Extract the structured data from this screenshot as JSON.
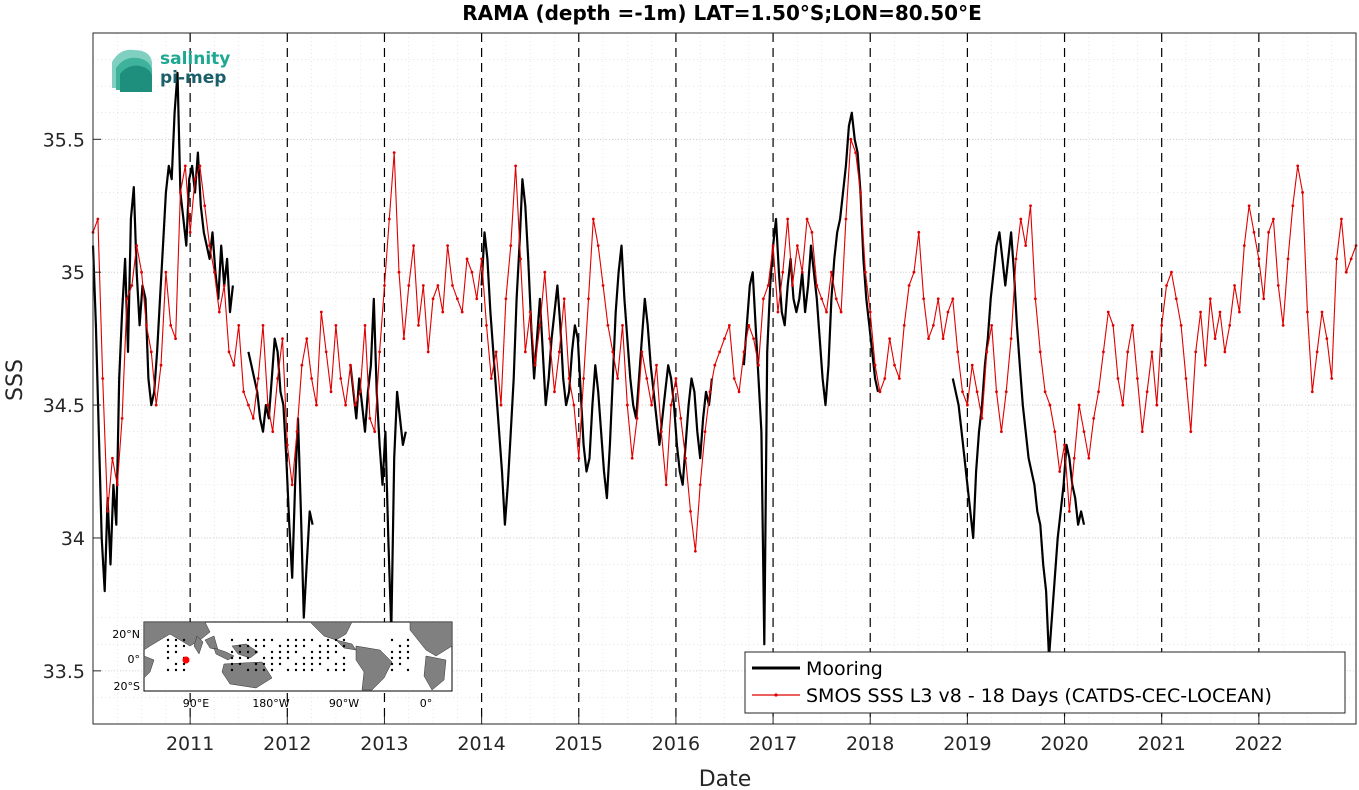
{
  "chart_data": {
    "type": "line",
    "title": "RAMA (depth =-1m) LAT=1.50°S;LON=80.50°E",
    "xlabel": "Date",
    "ylabel": "SSS",
    "xlim": [
      "2010-01-01",
      "2022-12-31"
    ],
    "ylim": [
      33.3,
      35.9
    ],
    "x_ticks": [
      "2011",
      "2012",
      "2013",
      "2014",
      "2015",
      "2016",
      "2017",
      "2018",
      "2019",
      "2020",
      "2021",
      "2022"
    ],
    "y_ticks": [
      "33.5",
      "34",
      "34.5",
      "35",
      "35.5"
    ],
    "grid": true,
    "legend_location": "bottom-right",
    "vertical_dashed_lines_at": [
      "2011",
      "2012",
      "2013",
      "2014",
      "2015",
      "2016",
      "2017",
      "2018",
      "2019",
      "2020",
      "2021",
      "2022"
    ],
    "series": [
      {
        "name": "Mooring",
        "color": "#000000",
        "x": [
          2010.0,
          2010.03,
          2010.06,
          2010.09,
          2010.12,
          2010.15,
          2010.18,
          2010.21,
          2010.24,
          2010.27,
          2010.3,
          2010.33,
          2010.36,
          2010.39,
          2010.42,
          2010.45,
          2010.48,
          2010.51,
          2010.54,
          2010.57,
          2010.6,
          2010.63,
          2010.66,
          2010.69,
          2010.72,
          2010.75,
          2010.78,
          2010.81,
          2010.84,
          2010.87,
          2010.9,
          2010.93,
          2010.96,
          2010.99,
          2011.02,
          2011.05,
          2011.08,
          2011.11,
          2011.14,
          2011.17,
          2011.2,
          2011.23,
          2011.26,
          2011.29,
          2011.32,
          2011.35,
          2011.38,
          2011.41,
          2011.44,
          null,
          2011.6,
          2011.63,
          2011.66,
          2011.69,
          2011.72,
          2011.75,
          2011.78,
          2011.81,
          2011.84,
          2011.87,
          2011.9,
          2011.93,
          2011.96,
          2011.99,
          2012.02,
          2012.05,
          2012.08,
          2012.11,
          2012.14,
          2012.17,
          2012.2,
          2012.23,
          2012.26,
          null,
          2012.65,
          2012.68,
          2012.71,
          2012.74,
          2012.77,
          2012.8,
          2012.83,
          2012.86,
          2012.89,
          2012.92,
          2012.95,
          2012.98,
          2013.01,
          2013.04,
          2013.07,
          2013.1,
          2013.13,
          2013.16,
          2013.19,
          2013.22,
          null,
          2014.0,
          2014.03,
          2014.06,
          2014.09,
          2014.12,
          2014.15,
          2014.18,
          2014.21,
          2014.24,
          2014.27,
          2014.3,
          2014.33,
          2014.36,
          2014.39,
          2014.42,
          2014.45,
          2014.48,
          2014.51,
          2014.54,
          2014.57,
          2014.6,
          2014.63,
          2014.66,
          2014.69,
          2014.72,
          2014.75,
          2014.78,
          2014.81,
          2014.84,
          2014.87,
          2014.9,
          2014.93,
          2014.96,
          2014.99,
          2015.02,
          2015.05,
          2015.08,
          2015.11,
          2015.14,
          2015.17,
          2015.2,
          2015.23,
          2015.26,
          2015.29,
          2015.32,
          2015.35,
          2015.38,
          2015.41,
          2015.44,
          2015.47,
          2015.5,
          2015.53,
          2015.56,
          2015.59,
          2015.62,
          2015.65,
          2015.68,
          2015.71,
          2015.74,
          2015.77,
          2015.8,
          2015.83,
          2015.86,
          2015.89,
          2015.92,
          2015.95,
          2015.98,
          2016.01,
          2016.04,
          2016.07,
          2016.1,
          2016.13,
          2016.16,
          2016.19,
          2016.22,
          2016.25,
          2016.28,
          2016.31,
          2016.34,
          2016.37,
          null,
          2016.7,
          2016.73,
          2016.76,
          2016.79,
          2016.82,
          2016.85,
          2016.88,
          2016.91,
          2016.94,
          2016.97,
          2017.0,
          2017.03,
          2017.06,
          2017.09,
          2017.12,
          2017.15,
          2017.18,
          2017.21,
          2017.24,
          2017.27,
          2017.3,
          2017.33,
          2017.36,
          2017.39,
          2017.42,
          2017.45,
          2017.48,
          2017.51,
          2017.54,
          2017.57,
          2017.6,
          2017.63,
          2017.66,
          2017.69,
          2017.72,
          2017.75,
          2017.78,
          2017.81,
          2017.84,
          2017.87,
          2017.9,
          2017.93,
          2017.96,
          2017.99,
          2018.02,
          2018.05,
          2018.08,
          null,
          2018.85,
          2018.88,
          2018.91,
          2018.94,
          2018.97,
          2019.0,
          2019.03,
          2019.06,
          2019.09,
          2019.12,
          2019.15,
          2019.18,
          2019.21,
          2019.24,
          2019.27,
          2019.3,
          2019.33,
          2019.36,
          2019.39,
          2019.42,
          2019.45,
          2019.48,
          2019.51,
          2019.54,
          2019.57,
          2019.6,
          2019.63,
          2019.66,
          2019.69,
          2019.72,
          2019.75,
          2019.78,
          2019.81,
          2019.84,
          2019.87,
          2019.9,
          2019.93,
          2019.96,
          2019.99,
          2020.02,
          2020.05,
          2020.08,
          2020.11,
          2020.14,
          2020.17,
          2020.2
        ],
        "y": [
          35.1,
          34.8,
          34.4,
          34.0,
          33.8,
          34.15,
          33.9,
          34.2,
          34.05,
          34.6,
          34.85,
          35.05,
          34.7,
          35.2,
          35.32,
          35.0,
          34.8,
          34.95,
          34.9,
          34.6,
          34.5,
          34.55,
          34.7,
          34.9,
          35.1,
          35.3,
          35.4,
          35.35,
          35.6,
          35.75,
          35.3,
          35.2,
          35.1,
          35.35,
          35.4,
          35.3,
          35.45,
          35.25,
          35.15,
          35.1,
          35.05,
          35.15,
          35.0,
          34.9,
          35.1,
          34.95,
          35.05,
          34.85,
          34.95,
          null,
          34.7,
          34.65,
          34.6,
          34.55,
          34.45,
          34.4,
          34.5,
          34.45,
          34.6,
          34.75,
          34.7,
          34.55,
          34.5,
          34.3,
          34.05,
          33.85,
          34.2,
          34.45,
          34.1,
          33.7,
          33.9,
          34.1,
          34.05,
          null,
          34.65,
          34.55,
          34.45,
          34.6,
          34.5,
          34.4,
          34.55,
          34.65,
          34.9,
          34.55,
          34.35,
          34.2,
          34.4,
          34.0,
          33.65,
          34.3,
          34.55,
          34.45,
          34.35,
          34.4,
          null,
          34.95,
          35.15,
          35.05,
          34.85,
          34.7,
          34.55,
          34.4,
          34.25,
          34.05,
          34.2,
          34.4,
          34.6,
          34.9,
          35.1,
          35.35,
          35.25,
          35.05,
          34.8,
          34.6,
          34.75,
          34.9,
          34.7,
          34.5,
          34.6,
          34.75,
          34.85,
          34.95,
          34.8,
          34.6,
          34.5,
          34.55,
          34.7,
          34.8,
          34.75,
          34.55,
          34.35,
          34.25,
          34.3,
          34.5,
          34.65,
          34.55,
          34.4,
          34.25,
          34.15,
          34.35,
          34.6,
          34.85,
          35.0,
          35.1,
          34.9,
          34.75,
          34.6,
          34.5,
          34.45,
          34.6,
          34.75,
          34.9,
          34.8,
          34.65,
          34.55,
          34.45,
          34.35,
          34.45,
          34.55,
          34.65,
          34.6,
          34.5,
          34.35,
          34.25,
          34.2,
          34.35,
          34.5,
          34.6,
          34.55,
          34.4,
          34.3,
          34.45,
          34.55,
          34.5,
          34.6,
          null,
          34.65,
          34.8,
          34.95,
          35.0,
          34.8,
          34.6,
          34.4,
          33.6,
          34.7,
          34.95,
          35.1,
          35.2,
          35.0,
          34.85,
          34.8,
          34.95,
          35.05,
          34.9,
          34.85,
          34.9,
          35.0,
          34.85,
          34.95,
          35.1,
          35.0,
          34.9,
          34.75,
          34.6,
          34.5,
          34.65,
          34.9,
          35.05,
          35.15,
          35.2,
          35.3,
          35.4,
          35.55,
          35.6,
          35.5,
          35.45,
          35.3,
          35.05,
          34.9,
          34.8,
          34.7,
          34.6,
          34.55,
          null,
          34.6,
          34.55,
          34.5,
          34.4,
          34.3,
          34.2,
          34.1,
          34.0,
          34.25,
          34.4,
          34.5,
          34.65,
          34.75,
          34.9,
          35.0,
          35.1,
          35.15,
          35.05,
          34.95,
          35.05,
          35.15,
          35.0,
          34.8,
          34.65,
          34.5,
          34.4,
          34.3,
          34.25,
          34.2,
          34.1,
          34.05,
          33.9,
          33.8,
          33.55,
          33.7,
          33.85,
          34.0,
          34.1,
          34.2,
          34.35,
          34.3,
          34.2,
          34.15,
          34.05,
          34.1,
          34.05
        ]
      },
      {
        "name": "SMOS SSS L3 v8 - 18 Days (CATDS-CEC-LOCEAN)",
        "color": "#e00000",
        "x": [
          2010.0,
          2010.05,
          2010.1,
          2010.15,
          2010.2,
          2010.25,
          2010.3,
          2010.35,
          2010.4,
          2010.45,
          2010.5,
          2010.55,
          2010.6,
          2010.65,
          2010.7,
          2010.75,
          2010.8,
          2010.85,
          2010.9,
          2010.95,
          2011.0,
          2011.05,
          2011.1,
          2011.15,
          2011.2,
          2011.25,
          2011.3,
          2011.35,
          2011.4,
          2011.45,
          2011.5,
          2011.55,
          2011.6,
          2011.65,
          2011.7,
          2011.75,
          2011.8,
          2011.85,
          2011.9,
          2011.95,
          2012.0,
          2012.05,
          2012.1,
          2012.15,
          2012.2,
          2012.25,
          2012.3,
          2012.35,
          2012.4,
          2012.45,
          2012.5,
          2012.55,
          2012.6,
          2012.65,
          2012.7,
          2012.75,
          2012.8,
          2012.85,
          2012.9,
          2012.95,
          2013.0,
          2013.05,
          2013.1,
          2013.15,
          2013.2,
          2013.25,
          2013.3,
          2013.35,
          2013.4,
          2013.45,
          2013.5,
          2013.55,
          2013.6,
          2013.65,
          2013.7,
          2013.75,
          2013.8,
          2013.85,
          2013.9,
          2013.95,
          2014.0,
          2014.05,
          2014.1,
          2014.15,
          2014.2,
          2014.25,
          2014.3,
          2014.35,
          2014.4,
          2014.45,
          2014.5,
          2014.55,
          2014.6,
          2014.65,
          2014.7,
          2014.75,
          2014.8,
          2014.85,
          2014.9,
          2014.95,
          2015.0,
          2015.05,
          2015.1,
          2015.15,
          2015.2,
          2015.25,
          2015.3,
          2015.35,
          2015.4,
          2015.45,
          2015.5,
          2015.55,
          2015.6,
          2015.65,
          2015.7,
          2015.75,
          2015.8,
          2015.85,
          2015.9,
          2015.95,
          2016.0,
          2016.05,
          2016.1,
          2016.15,
          2016.2,
          2016.25,
          2016.3,
          2016.35,
          2016.4,
          2016.45,
          2016.5,
          2016.55,
          2016.6,
          2016.65,
          2016.7,
          2016.75,
          2016.8,
          2016.85,
          2016.9,
          2016.95,
          2017.0,
          2017.05,
          2017.1,
          2017.15,
          2017.2,
          2017.25,
          2017.3,
          2017.35,
          2017.4,
          2017.45,
          2017.5,
          2017.55,
          2017.6,
          2017.65,
          2017.7,
          2017.75,
          2017.8,
          2017.85,
          2017.9,
          2017.95,
          2018.0,
          2018.05,
          2018.1,
          2018.15,
          2018.2,
          2018.25,
          2018.3,
          2018.35,
          2018.4,
          2018.45,
          2018.5,
          2018.55,
          2018.6,
          2018.65,
          2018.7,
          2018.75,
          2018.8,
          2018.85,
          2018.9,
          2018.95,
          2019.0,
          2019.05,
          2019.1,
          2019.15,
          2019.2,
          2019.25,
          2019.3,
          2019.35,
          2019.4,
          2019.45,
          2019.5,
          2019.55,
          2019.6,
          2019.65,
          2019.7,
          2019.75,
          2019.8,
          2019.85,
          2019.9,
          2019.95,
          2020.0,
          2020.05,
          2020.1,
          2020.15,
          2020.2,
          2020.25,
          2020.3,
          2020.35,
          2020.4,
          2020.45,
          2020.5,
          2020.55,
          2020.6,
          2020.65,
          2020.7,
          2020.75,
          2020.8,
          2020.85,
          2020.9,
          2020.95,
          2021.0,
          2021.05,
          2021.1,
          2021.15,
          2021.2,
          2021.25,
          2021.3,
          2021.35,
          2021.4,
          2021.45,
          2021.5,
          2021.55,
          2021.6,
          2021.65,
          2021.7,
          2021.75,
          2021.8,
          2021.85,
          2021.9,
          2021.95,
          2022.0,
          2022.05,
          2022.1,
          2022.15,
          2022.2,
          2022.25,
          2022.3,
          2022.35,
          2022.4,
          2022.45,
          2022.5,
          2022.55,
          2022.6,
          2022.65,
          2022.7,
          2022.75,
          2022.8,
          2022.85,
          2022.9,
          2022.95,
          2023.0
        ],
        "y": [
          35.15,
          35.2,
          34.6,
          34.1,
          34.3,
          34.2,
          34.45,
          34.9,
          34.95,
          35.1,
          35.0,
          34.8,
          34.7,
          34.5,
          34.65,
          35.0,
          34.8,
          34.75,
          35.3,
          35.4,
          35.15,
          35.35,
          35.4,
          35.25,
          35.1,
          35.0,
          34.85,
          34.95,
          34.7,
          34.65,
          34.8,
          34.55,
          34.5,
          34.45,
          34.6,
          34.8,
          34.5,
          34.4,
          34.6,
          34.75,
          34.35,
          34.2,
          34.4,
          34.65,
          34.75,
          34.6,
          34.5,
          34.85,
          34.7,
          34.55,
          34.8,
          34.6,
          34.5,
          34.65,
          34.5,
          34.55,
          34.8,
          34.45,
          34.4,
          34.7,
          34.95,
          35.2,
          35.45,
          35.0,
          34.75,
          34.95,
          35.1,
          34.8,
          34.95,
          34.7,
          34.9,
          34.95,
          34.85,
          35.1,
          34.95,
          34.9,
          34.85,
          35.05,
          35.0,
          34.9,
          35.05,
          34.8,
          34.6,
          34.7,
          34.5,
          34.9,
          35.1,
          35.4,
          35.05,
          34.7,
          34.85,
          34.65,
          34.8,
          35.0,
          34.75,
          34.55,
          34.7,
          34.9,
          34.6,
          34.5,
          34.3,
          34.6,
          34.9,
          35.2,
          35.1,
          34.95,
          34.8,
          34.7,
          34.6,
          34.8,
          34.5,
          34.3,
          34.45,
          34.7,
          34.6,
          34.5,
          34.65,
          34.4,
          34.2,
          34.5,
          34.6,
          34.45,
          34.3,
          34.1,
          33.95,
          34.2,
          34.4,
          34.55,
          34.65,
          34.7,
          34.75,
          34.8,
          34.6,
          34.55,
          34.7,
          34.8,
          34.75,
          34.65,
          34.9,
          34.95,
          35.1,
          34.85,
          35.0,
          35.2,
          34.95,
          35.1,
          35.0,
          35.2,
          35.15,
          34.95,
          34.9,
          34.85,
          35.0,
          34.9,
          34.85,
          35.2,
          35.5,
          35.45,
          35.3,
          35.0,
          34.85,
          34.65,
          34.55,
          34.6,
          34.75,
          34.65,
          34.6,
          34.8,
          34.95,
          35.0,
          35.15,
          34.9,
          34.75,
          34.8,
          34.9,
          34.75,
          34.85,
          34.9,
          34.7,
          34.55,
          34.5,
          34.65,
          34.55,
          34.45,
          34.7,
          34.8,
          34.55,
          34.4,
          34.55,
          34.75,
          35.05,
          35.2,
          35.1,
          35.25,
          34.9,
          34.7,
          34.55,
          34.5,
          34.4,
          34.25,
          34.35,
          34.1,
          34.3,
          34.5,
          34.4,
          34.3,
          34.45,
          34.55,
          34.7,
          34.85,
          34.8,
          34.6,
          34.5,
          34.7,
          34.8,
          34.6,
          34.4,
          34.55,
          34.7,
          34.5,
          34.8,
          34.95,
          35.0,
          34.9,
          34.8,
          34.6,
          34.4,
          34.7,
          34.85,
          34.65,
          34.9,
          34.75,
          34.85,
          34.7,
          34.8,
          34.95,
          34.85,
          35.1,
          35.25,
          35.15,
          35.05,
          34.9,
          35.15,
          35.2,
          34.95,
          34.8,
          35.05,
          35.25,
          35.4,
          35.3,
          34.85,
          34.55,
          34.7,
          34.85,
          34.75,
          34.6,
          35.05,
          35.2,
          35.0,
          35.05,
          35.1
        ]
      }
    ]
  },
  "logo": {
    "line1": "salinity",
    "line2": "pi-mep"
  },
  "inset_map": {
    "y_ticks": [
      "20°N",
      "0°",
      "20°S"
    ],
    "x_ticks": [
      "90°E",
      "180°W",
      "90°W",
      "0°"
    ],
    "marker_color": "#ff0000"
  }
}
